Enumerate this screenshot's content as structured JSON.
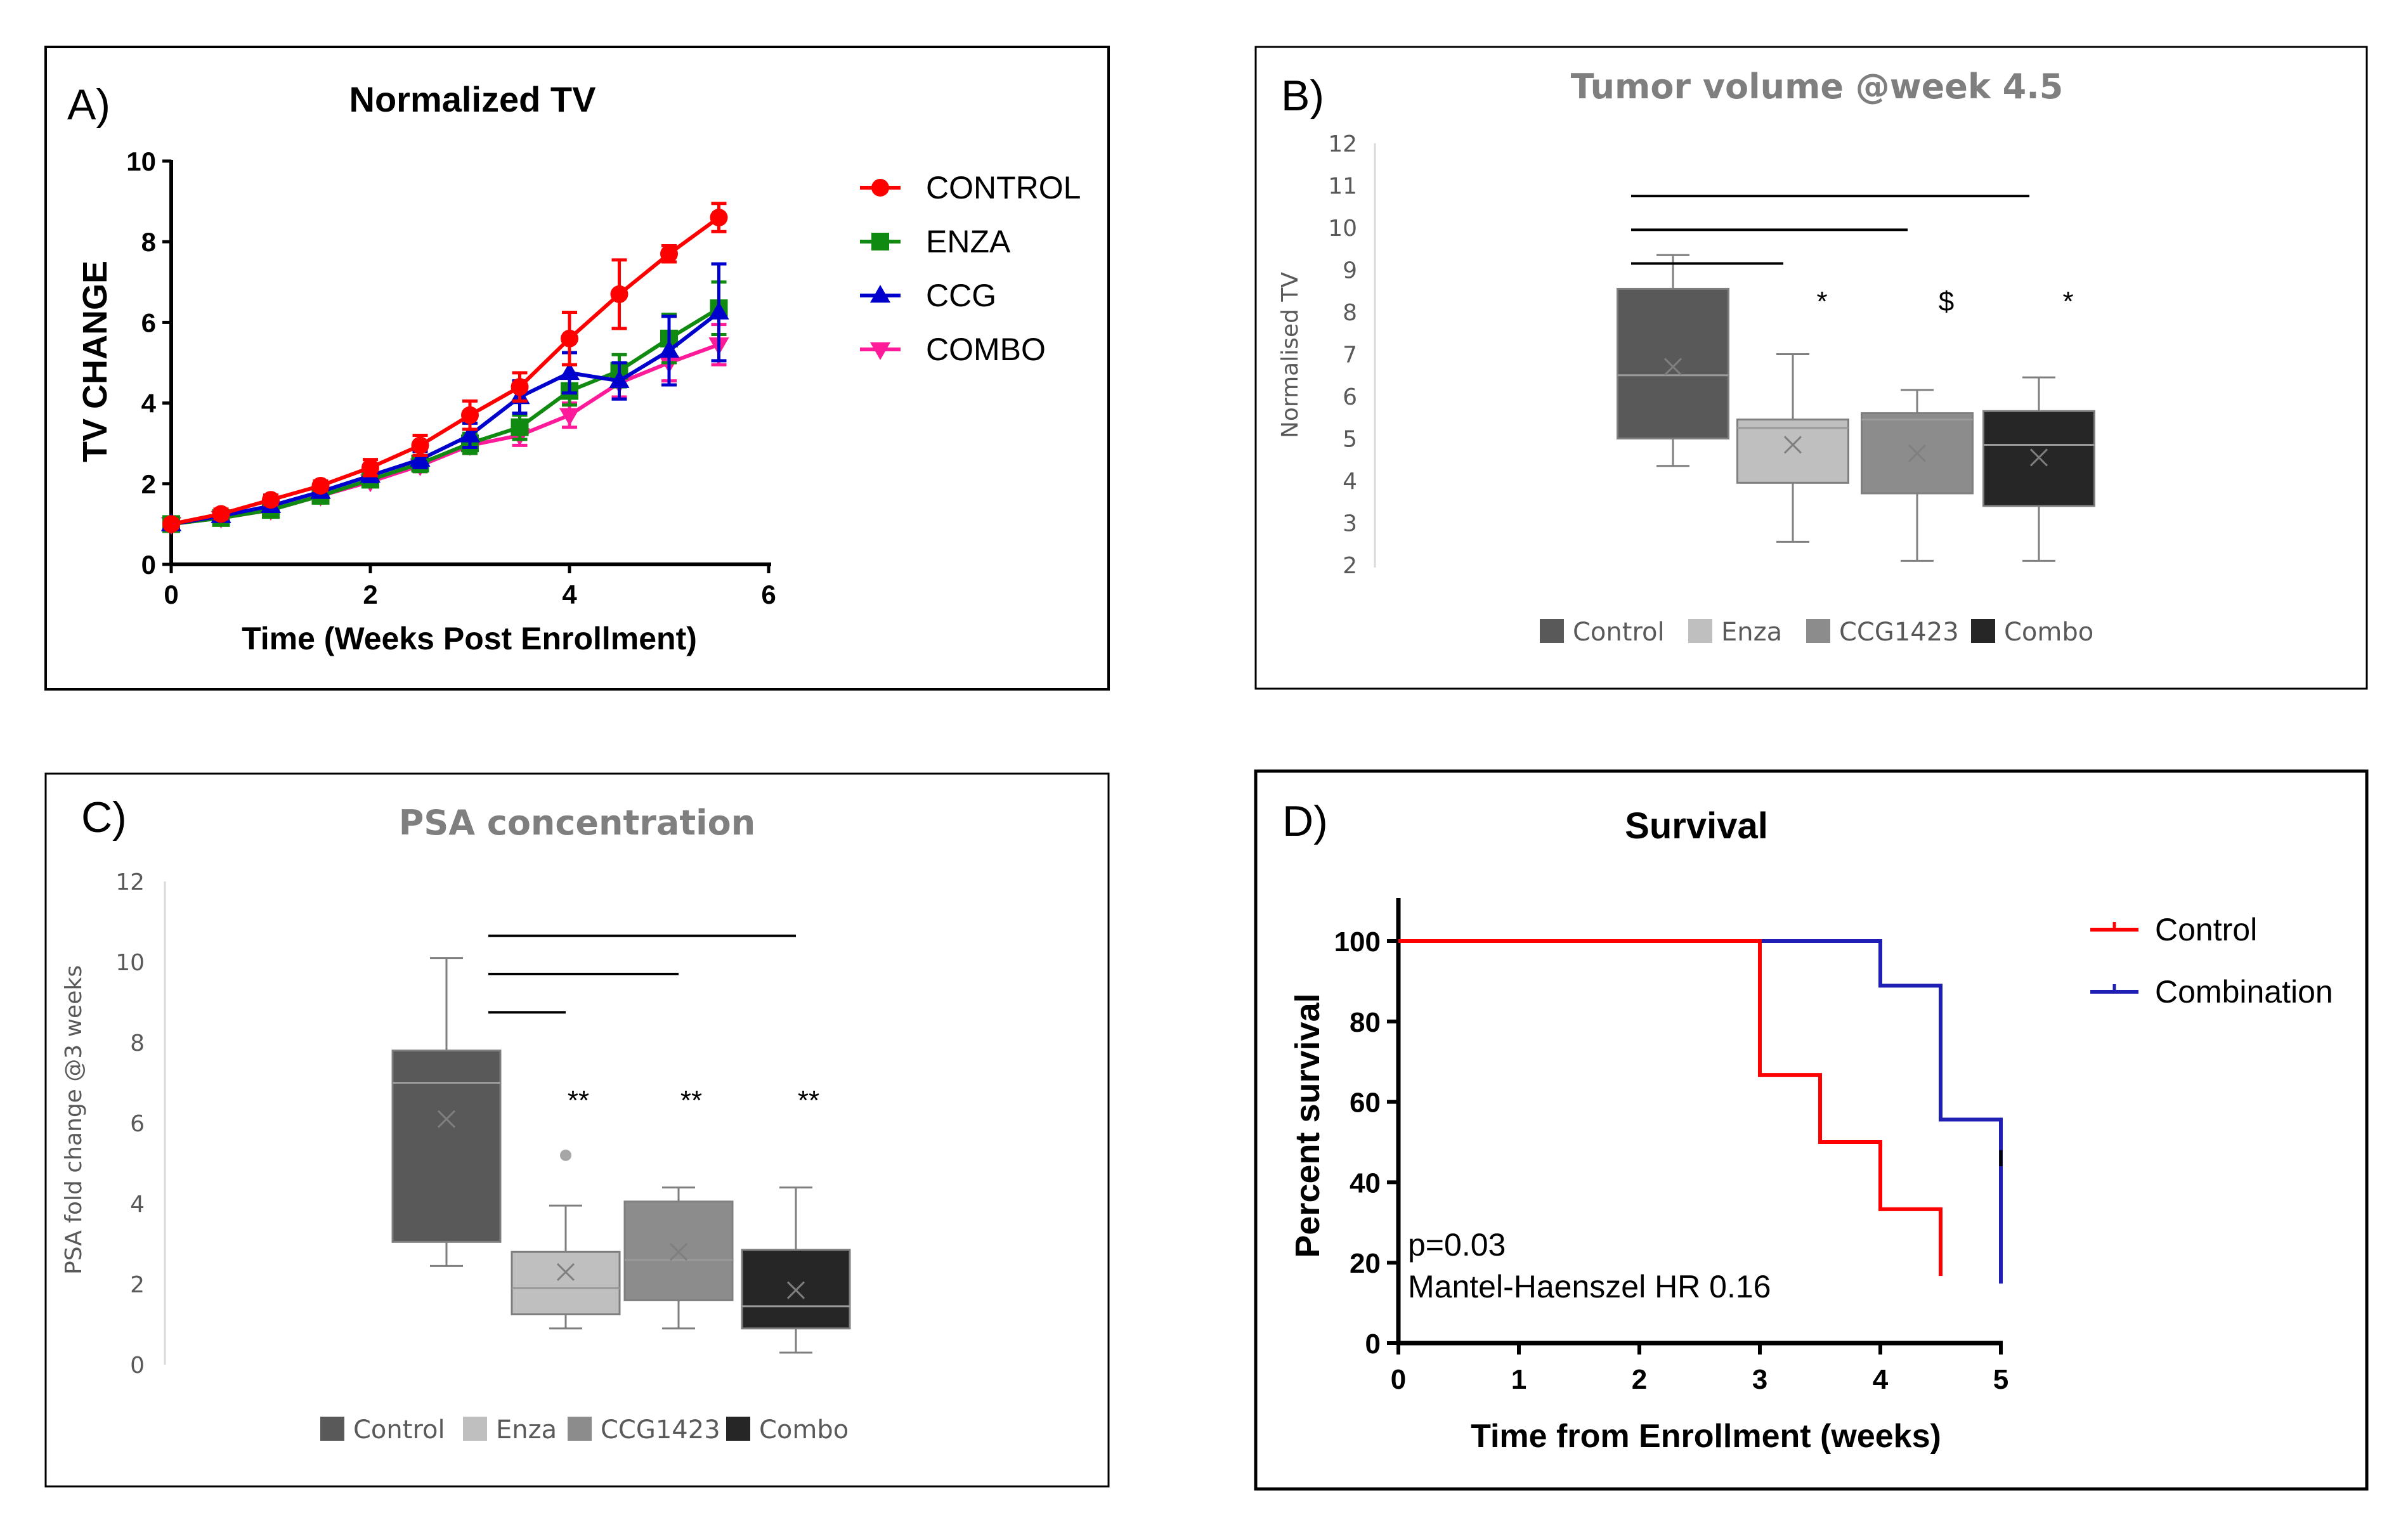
{
  "colors": {
    "control_red": "#ff0000",
    "enza_green": "#118a11",
    "ccg_blue": "#0000cc",
    "combo_pink": "#ff1a9a",
    "box_control": "#595959",
    "box_enza": "#bfbfbf",
    "box_ccg": "#8c8c8c",
    "box_combo": "#262626",
    "km_blue": "#1f1fb4"
  },
  "chart_data": [
    {
      "panel": "A)",
      "type": "line",
      "title": "Normalized TV",
      "xlabel": "Time (Weeks Post Enrollment)",
      "ylabel": "TV CHANGE",
      "xlim": [
        0,
        6
      ],
      "ylim": [
        0,
        10
      ],
      "xticks": [
        "0",
        "2",
        "4",
        "6"
      ],
      "yticks": [
        "0",
        "2",
        "4",
        "6",
        "8",
        "10"
      ],
      "legend_position": "right",
      "x": [
        0,
        0.5,
        1,
        1.5,
        2,
        2.5,
        3,
        3.5,
        4,
        4.5,
        5,
        5.5
      ],
      "series": [
        {
          "name": "CONTROL",
          "marker": "circle",
          "color": "#ff0000",
          "values": [
            1.0,
            1.25,
            1.6,
            1.95,
            2.4,
            2.95,
            3.7,
            4.4,
            5.6,
            6.7,
            7.7,
            8.6
          ],
          "errors": [
            0.1,
            0.12,
            0.12,
            0.12,
            0.2,
            0.25,
            0.35,
            0.35,
            0.65,
            0.85,
            0.2,
            0.35
          ]
        },
        {
          "name": "ENZA",
          "marker": "square",
          "color": "#118a11",
          "values": [
            1.0,
            1.15,
            1.35,
            1.7,
            2.1,
            2.5,
            3.0,
            3.4,
            4.3,
            4.8,
            5.6,
            6.35
          ],
          "errors": [
            0.08,
            0.08,
            0.1,
            0.12,
            0.15,
            0.2,
            0.25,
            0.3,
            0.35,
            0.4,
            0.6,
            0.65
          ]
        },
        {
          "name": "CCG",
          "marker": "triangle",
          "color": "#0000cc",
          "values": [
            1.0,
            1.2,
            1.45,
            1.8,
            2.2,
            2.6,
            3.2,
            4.15,
            4.75,
            4.55,
            5.3,
            6.25
          ],
          "errors": [
            0.08,
            0.08,
            0.1,
            0.12,
            0.15,
            0.2,
            0.3,
            0.4,
            0.5,
            0.45,
            0.85,
            1.2
          ]
        },
        {
          "name": "COMBO",
          "marker": "triangle-down",
          "color": "#ff1a9a",
          "values": [
            1.0,
            1.15,
            1.35,
            1.7,
            2.05,
            2.45,
            2.95,
            3.2,
            3.7,
            4.5,
            5.0,
            5.45
          ],
          "errors": [
            0.08,
            0.08,
            0.1,
            0.1,
            0.12,
            0.15,
            0.2,
            0.25,
            0.3,
            0.35,
            0.45,
            0.5
          ]
        }
      ]
    },
    {
      "panel": "B)",
      "type": "box",
      "title": "Tumor volume @week 4.5",
      "ylabel": "Normalised TV",
      "ylim": [
        2,
        12
      ],
      "yticks": [
        "2",
        "3",
        "4",
        "5",
        "6",
        "7",
        "8",
        "9",
        "10",
        "11",
        "12"
      ],
      "legend_position": "bottom",
      "groups": [
        {
          "name": "Control",
          "min": 4.35,
          "q1": 5.0,
          "median": 6.5,
          "q3": 8.55,
          "max": 9.35,
          "mean": 6.7,
          "sig": "",
          "color": "#595959"
        },
        {
          "name": "Enza",
          "min": 2.55,
          "q1": 3.95,
          "median": 5.25,
          "q3": 5.45,
          "max": 7.0,
          "mean": 4.85,
          "sig": "*",
          "color": "#bfbfbf"
        },
        {
          "name": "CCG1423",
          "min": 2.1,
          "q1": 3.7,
          "median": 5.45,
          "q3": 5.6,
          "max": 6.15,
          "mean": 4.65,
          "sig": "$",
          "color": "#8c8c8c"
        },
        {
          "name": "Combo",
          "min": 2.1,
          "q1": 3.4,
          "median": 4.85,
          "q3": 5.65,
          "max": 6.45,
          "mean": 4.55,
          "sig": "*",
          "color": "#262626"
        }
      ],
      "comparison_bars": [
        {
          "from": "Control",
          "to": "Enza",
          "y": 9.15
        },
        {
          "from": "Control",
          "to": "CCG1423",
          "y": 9.95
        },
        {
          "from": "Control",
          "to": "Combo",
          "y": 10.75
        }
      ]
    },
    {
      "panel": "C)",
      "type": "box",
      "title": "PSA concentration",
      "ylabel": "PSA fold change @3 weeks",
      "ylim": [
        0,
        12
      ],
      "yticks": [
        "0",
        "2",
        "4",
        "6",
        "8",
        "10",
        "12"
      ],
      "legend_position": "bottom",
      "groups": [
        {
          "name": "Control",
          "min": 2.45,
          "q1": 3.05,
          "median": 7.0,
          "q3": 7.8,
          "max": 10.1,
          "mean": 6.1,
          "sig": "",
          "outliers": [],
          "color": "#595959"
        },
        {
          "name": "Enza",
          "min": 0.9,
          "q1": 1.25,
          "median": 1.9,
          "q3": 2.8,
          "max": 3.95,
          "mean": 2.3,
          "sig": "**",
          "outliers": [
            5.2
          ],
          "color": "#bfbfbf"
        },
        {
          "name": "CCG1423",
          "min": 0.9,
          "q1": 1.6,
          "median": 2.6,
          "q3": 4.05,
          "max": 4.4,
          "mean": 2.8,
          "sig": "**",
          "outliers": [],
          "color": "#8c8c8c"
        },
        {
          "name": "Combo",
          "min": 0.3,
          "q1": 0.9,
          "median": 1.45,
          "q3": 2.85,
          "max": 4.4,
          "mean": 1.85,
          "sig": "**",
          "outliers": [],
          "color": "#262626"
        }
      ],
      "comparison_bars": [
        {
          "from": "Control",
          "to": "Enza",
          "y": 8.75
        },
        {
          "from": "Control",
          "to": "CCG1423",
          "y": 9.7
        },
        {
          "from": "Control",
          "to": "Combo",
          "y": 10.65
        }
      ]
    },
    {
      "panel": "D)",
      "type": "line",
      "subtype": "kaplan-meier",
      "title": "Survival",
      "xlabel": "Time from  Enrollment (weeks)",
      "ylabel": "Percent survival",
      "xlim": [
        0,
        5
      ],
      "ylim": [
        0,
        110
      ],
      "xticks": [
        "0",
        "1",
        "2",
        "3",
        "4",
        "5"
      ],
      "yticks": [
        "0",
        "20",
        "40",
        "60",
        "80",
        "100"
      ],
      "legend_position": "top-right",
      "annotations": [
        "p=0.03",
        "Mantel-Haenszel HR 0.16"
      ],
      "series": [
        {
          "name": "Control",
          "color": "#ff0000",
          "x": [
            0,
            3,
            3,
            3.5,
            3.5,
            4,
            4,
            4.5,
            4.5
          ],
          "y": [
            100,
            100,
            66.7,
            66.7,
            50,
            50,
            33.3,
            33.3,
            16.7
          ]
        },
        {
          "name": "Combination",
          "color": "#1f1fb4",
          "x": [
            0,
            4,
            4,
            4.5,
            4.5,
            5,
            5
          ],
          "y": [
            100,
            100,
            88.9,
            88.9,
            55.6,
            55.6,
            14.8
          ]
        }
      ]
    }
  ]
}
